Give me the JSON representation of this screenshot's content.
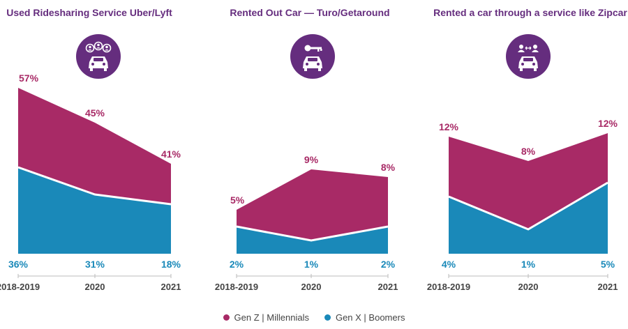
{
  "colors": {
    "genz": "#a82a66",
    "genx": "#1a89b9",
    "title": "#652d7e",
    "icon_bg": "#652d7e",
    "axis": "#444444"
  },
  "legend": {
    "genz": "Gen Z  |  Millennials",
    "genx": "Gen X  |  Boomers"
  },
  "chart_data": [
    {
      "type": "area",
      "title": "Used Ridesharing Service Uber/Lyft",
      "icon": "rideshare-people-car-icon",
      "categories": [
        "2018-2019",
        "2020",
        "2021"
      ],
      "series": [
        {
          "name": "Gen Z  |  Millennials",
          "values": [
            57,
            45,
            41
          ],
          "labels": [
            "57%",
            "45%",
            "41%"
          ]
        },
        {
          "name": "Gen X  |  Boomers",
          "values": [
            36,
            31,
            18
          ],
          "labels": [
            "36%",
            "31%",
            "18%"
          ]
        }
      ]
    },
    {
      "type": "area",
      "title": "Rented Out Car — Turo/Getaround",
      "icon": "car-key-icon",
      "categories": [
        "2018-2019",
        "2020",
        "2021"
      ],
      "series": [
        {
          "name": "Gen Z  |  Millennials",
          "values": [
            5,
            9,
            8
          ],
          "labels": [
            "5%",
            "9%",
            "8%"
          ]
        },
        {
          "name": "Gen X  |  Boomers",
          "values": [
            2,
            1,
            2
          ],
          "labels": [
            "2%",
            "1%",
            "2%"
          ]
        }
      ]
    },
    {
      "type": "area",
      "title": "Rented a car through a service like Zipcar",
      "icon": "car-sharing-people-icon",
      "categories": [
        "2018-2019",
        "2020",
        "2021"
      ],
      "series": [
        {
          "name": "Gen Z  |  Millennials",
          "values": [
            12,
            8,
            12
          ],
          "labels": [
            "12%",
            "8%",
            "12%"
          ]
        },
        {
          "name": "Gen X  |  Boomers",
          "values": [
            4,
            1,
            5
          ],
          "labels": [
            "4%",
            "1%",
            "5%"
          ]
        }
      ]
    }
  ]
}
